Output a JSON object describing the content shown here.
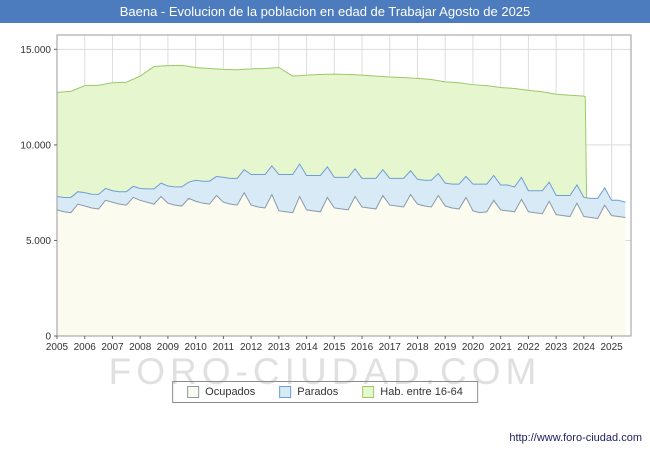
{
  "title_bar": {
    "text": "Baena - Evolucion de la poblacion en edad de Trabajar Agosto de 2025",
    "bg": "#4d7cbe",
    "fg": "#ffffff"
  },
  "watermark": "FORO-CIUDAD.COM",
  "footer": {
    "url": "http://www.foro-ciudad.com"
  },
  "legend": {
    "items": [
      {
        "label": "Ocupados",
        "fill": "#fbfbf0",
        "stroke": "#8a9aa8"
      },
      {
        "label": "Parados",
        "fill": "#d9eaf7",
        "stroke": "#6f9fd0"
      },
      {
        "label": "Hab. entre 16-64",
        "fill": "#e6f6cf",
        "stroke": "#9cc96a"
      }
    ]
  },
  "chart_data": {
    "type": "area",
    "title": "Baena - Evolucion de la poblacion en edad de Trabajar Agosto de 2025",
    "xlabel": "",
    "ylabel": "",
    "xlim": [
      2005,
      2025.7
    ],
    "ylim": [
      0,
      15750
    ],
    "grid": true,
    "legend_position": "bottom",
    "stacking": "Parados is stacked on top of Ocupados; Hab. entre 16-64 is an independent series drawn behind (its data ends early 2024, producing a vertical drop)",
    "x_ticks": [
      2005,
      2006,
      2007,
      2008,
      2009,
      2010,
      2011,
      2012,
      2013,
      2014,
      2015,
      2016,
      2017,
      2018,
      2019,
      2020,
      2021,
      2022,
      2023,
      2024,
      2025
    ],
    "y_ticks": [
      {
        "value": 0,
        "label": "0"
      },
      {
        "value": 5000,
        "label": "5.000"
      },
      {
        "value": 10000,
        "label": "10.000"
      },
      {
        "value": 15000,
        "label": "15.000"
      }
    ],
    "x": [
      2005,
      2005.25,
      2005.5,
      2005.75,
      2006,
      2006.25,
      2006.5,
      2006.75,
      2007,
      2007.25,
      2007.5,
      2007.75,
      2008,
      2008.25,
      2008.5,
      2008.75,
      2009,
      2009.25,
      2009.5,
      2009.75,
      2010,
      2010.25,
      2010.5,
      2010.75,
      2011,
      2011.25,
      2011.5,
      2011.75,
      2012,
      2012.25,
      2012.5,
      2012.75,
      2013,
      2013.25,
      2013.5,
      2013.75,
      2014,
      2014.25,
      2014.5,
      2014.75,
      2015,
      2015.25,
      2015.5,
      2015.75,
      2016,
      2016.25,
      2016.5,
      2016.75,
      2017,
      2017.25,
      2017.5,
      2017.75,
      2018,
      2018.25,
      2018.5,
      2018.75,
      2019,
      2019.25,
      2019.5,
      2019.75,
      2020,
      2020.25,
      2020.5,
      2020.75,
      2021,
      2021.25,
      2021.5,
      2021.75,
      2022,
      2022.25,
      2022.5,
      2022.75,
      2023,
      2023.25,
      2023.5,
      2023.75,
      2024,
      2024.25,
      2024.5,
      2024.75,
      2025,
      2025.25,
      2025.5
    ],
    "series": [
      {
        "name": "Ocupados",
        "fill": "#fbfbf0",
        "stroke": "#8a9aa8",
        "values": [
          6600,
          6500,
          6450,
          6900,
          6800,
          6700,
          6650,
          7100,
          7000,
          6900,
          6850,
          7250,
          7100,
          7000,
          6900,
          7300,
          6950,
          6850,
          6800,
          7200,
          7050,
          6950,
          6900,
          7350,
          7000,
          6900,
          6850,
          7500,
          6850,
          6750,
          6700,
          7400,
          6550,
          6500,
          6450,
          7300,
          6600,
          6550,
          6500,
          7250,
          6700,
          6650,
          6600,
          7300,
          6750,
          6700,
          6650,
          7350,
          6850,
          6800,
          6750,
          7400,
          6900,
          6800,
          6750,
          7350,
          6800,
          6700,
          6650,
          7250,
          6550,
          6450,
          6500,
          7100,
          6600,
          6550,
          6500,
          7150,
          6500,
          6450,
          6400,
          7050,
          6350,
          6300,
          6250,
          6950,
          6250,
          6200,
          6150,
          6850,
          6300,
          6250,
          6200
        ]
      },
      {
        "name": "Parados",
        "fill": "#d9eaf7",
        "stroke": "#6f9fd0",
        "values": [
          700,
          750,
          800,
          650,
          700,
          720,
          760,
          620,
          600,
          650,
          700,
          580,
          620,
          700,
          800,
          700,
          900,
          950,
          1000,
          850,
          1100,
          1150,
          1200,
          1000,
          1300,
          1350,
          1400,
          1200,
          1600,
          1700,
          1750,
          1500,
          1900,
          1950,
          2000,
          1700,
          1800,
          1850,
          1900,
          1600,
          1600,
          1650,
          1700,
          1450,
          1500,
          1550,
          1600,
          1350,
          1400,
          1450,
          1500,
          1250,
          1300,
          1350,
          1400,
          1150,
          1200,
          1250,
          1300,
          1100,
          1400,
          1500,
          1450,
          1300,
          1300,
          1350,
          1300,
          1150,
          1100,
          1150,
          1200,
          1000,
          1000,
          1050,
          1100,
          950,
          1000,
          1000,
          1050,
          900,
          800,
          850,
          800
        ]
      }
    ],
    "hab_series": {
      "name": "Hab. entre 16-64",
      "fill": "#e6f6cf",
      "stroke": "#9cc96a",
      "x": [
        2005,
        2005.5,
        2006,
        2006.5,
        2007,
        2007.5,
        2008,
        2008.5,
        2009,
        2009.5,
        2010,
        2010.5,
        2011,
        2011.5,
        2012,
        2012.5,
        2013,
        2013.5,
        2014,
        2014.5,
        2015,
        2015.5,
        2016,
        2016.5,
        2017,
        2017.5,
        2018,
        2018.5,
        2019,
        2019.5,
        2020,
        2020.5,
        2021,
        2021.5,
        2022,
        2022.5,
        2023,
        2023.5,
        2024,
        2024.05,
        2024.1
      ],
      "values": [
        12750,
        12800,
        13100,
        13120,
        13250,
        13280,
        13600,
        14100,
        14150,
        14160,
        14050,
        14000,
        13950,
        13930,
        13980,
        14000,
        14050,
        13600,
        13650,
        13680,
        13700,
        13680,
        13650,
        13600,
        13550,
        13520,
        13480,
        13420,
        13300,
        13250,
        13150,
        13100,
        13000,
        12950,
        12850,
        12780,
        12650,
        12600,
        12550,
        12520,
        7050
      ]
    }
  }
}
